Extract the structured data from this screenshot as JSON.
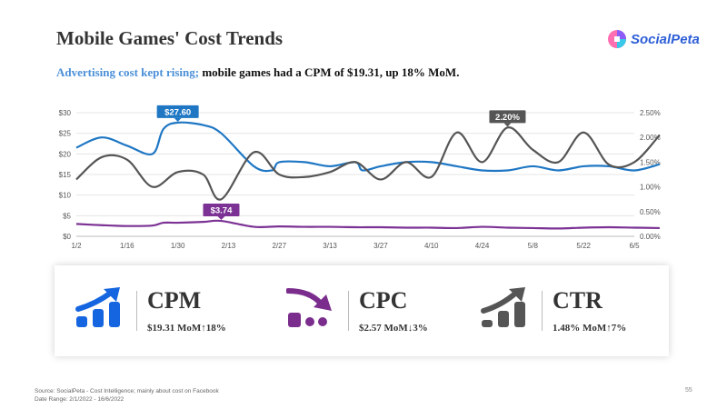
{
  "title": "Mobile Games' Cost Trends",
  "logo": {
    "text": "SocialPeta"
  },
  "subtitle": {
    "highlight": "Advertising cost kept rising;",
    "rest": " mobile games had a CPM of $19.31, up 18% MoM."
  },
  "chart_data": {
    "type": "line",
    "title": "",
    "x_ticks": [
      "1/2",
      "1/16",
      "1/30",
      "2/13",
      "2/27",
      "3/13",
      "3/27",
      "4/10",
      "4/24",
      "5/8",
      "5/22",
      "6/5"
    ],
    "y_left_ticks": [
      "$0",
      "$5",
      "$10",
      "$15",
      "$20",
      "$25",
      "$30"
    ],
    "y_left_range": [
      0,
      30
    ],
    "y_right_ticks": [
      "0.00%",
      "0.50%",
      "1.00%",
      "1.50%",
      "2.00%",
      "2.50%"
    ],
    "y_right_range": [
      0,
      2.5
    ],
    "series": [
      {
        "name": "CPM",
        "axis": "left",
        "color": "#1f77c4",
        "day": [
          0,
          7,
          14,
          21,
          24,
          28,
          35,
          40,
          49,
          54,
          56,
          63,
          70,
          77,
          79,
          84,
          91,
          98,
          105,
          112,
          119,
          126,
          133,
          140,
          147,
          154,
          161
        ],
        "values": [
          21.5,
          24,
          22,
          20,
          26,
          27.6,
          27,
          25,
          17,
          16,
          18,
          18,
          17,
          18,
          16,
          17,
          18,
          18,
          17,
          16,
          16,
          17,
          16,
          17,
          17,
          16,
          17.5
        ]
      },
      {
        "name": "CTR",
        "axis": "right",
        "color": "#555555",
        "day": [
          0,
          7,
          14,
          21,
          28,
          35,
          40,
          49,
          56,
          63,
          70,
          77,
          84,
          91,
          98,
          105,
          112,
          119,
          126,
          133,
          140,
          147,
          154,
          161
        ],
        "values": [
          1.15,
          1.6,
          1.55,
          1.0,
          1.3,
          1.25,
          0.75,
          1.7,
          1.25,
          1.2,
          1.3,
          1.5,
          1.15,
          1.5,
          1.2,
          2.1,
          1.5,
          2.2,
          1.75,
          1.5,
          2.1,
          1.45,
          1.5,
          2.05
        ]
      },
      {
        "name": "CPC",
        "axis": "left",
        "color": "#7b3294",
        "day": [
          0,
          7,
          14,
          21,
          24,
          28,
          35,
          40,
          49,
          56,
          63,
          70,
          77,
          84,
          91,
          98,
          105,
          112,
          119,
          126,
          133,
          140,
          147,
          154,
          161
        ],
        "values": [
          3.0,
          2.7,
          2.5,
          2.6,
          3.3,
          3.3,
          3.5,
          3.74,
          2.3,
          2.4,
          2.3,
          2.3,
          2.2,
          2.2,
          2.1,
          2.1,
          2.0,
          2.3,
          2.1,
          2.0,
          1.9,
          2.1,
          2.2,
          2.1,
          2.0
        ]
      }
    ],
    "annotations": [
      {
        "label": "$27.60",
        "series": "CPM",
        "day": 28,
        "value": 27.6,
        "color": "#1f77c4"
      },
      {
        "label": "$3.74",
        "series": "CPC",
        "day": 40,
        "value": 3.74,
        "color": "#7b3294"
      },
      {
        "label": "2.20%",
        "series": "CTR",
        "day": 119,
        "value": 2.2,
        "color": "#555555"
      }
    ]
  },
  "kpis": [
    {
      "name": "CPM",
      "value": "$19.31 MoM↑18%",
      "icon": "bar-chart-up-arrow-icon",
      "color": "#1565e0"
    },
    {
      "name": "CPC",
      "value": "$2.57 MoM↓3%",
      "icon": "bar-chart-curved-arrow-icon",
      "color": "#7b2d8e"
    },
    {
      "name": "CTR",
      "value": "1.48% MoM↑7%",
      "icon": "bar-chart-up-arrow-icon",
      "color": "#555555"
    }
  ],
  "footer": {
    "source": "Source: SocialPeta - Cost Intelligence; mainly about cost on Facebook",
    "date_range": "Date Range: 2/1/2022 - 16/6/2022"
  },
  "page_number": "55"
}
